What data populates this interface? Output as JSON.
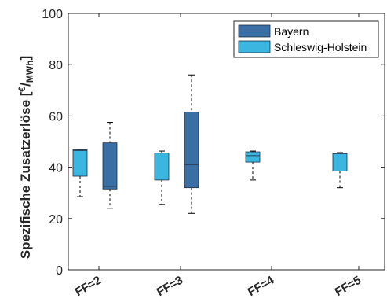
{
  "chart_data": {
    "type": "boxplot",
    "title": "",
    "ylabel": {
      "main": "Spezifische Zusatzerlöse [",
      "unit_num": "€",
      "unit_slash": "/",
      "unit_den": "MWh",
      "close": "]"
    },
    "ylim": [
      0,
      100
    ],
    "yticks": [
      0,
      20,
      40,
      60,
      80,
      100
    ],
    "categories": [
      "FF=2",
      "FF=3",
      "FF=4",
      "FF=5"
    ],
    "legend_position": "top-right",
    "grid": false,
    "series": [
      {
        "name": "Bayern",
        "color": "#3a6fa6",
        "boxes": [
          {
            "category": "FF=2",
            "min": 24,
            "q1": 31.5,
            "median": 32.5,
            "q3": 49.5,
            "max": 57.5
          },
          {
            "category": "FF=3",
            "min": 22,
            "q1": 32,
            "median": 41,
            "q3": 61.5,
            "max": 76
          }
        ]
      },
      {
        "name": "Schleswig-Holstein",
        "color": "#3ab6e0",
        "boxes": [
          {
            "category": "FF=2",
            "min": 28.5,
            "q1": 36.5,
            "median": 46.5,
            "q3": 46.8,
            "max": 46.8
          },
          {
            "category": "FF=3",
            "min": 25.5,
            "q1": 35,
            "median": 44,
            "q3": 45.5,
            "max": 46.3
          },
          {
            "category": "FF=4",
            "min": 35,
            "q1": 42,
            "median": 44.5,
            "q3": 46,
            "max": 46.3
          },
          {
            "category": "FF=5",
            "min": 32,
            "q1": 38.5,
            "median": 45.3,
            "q3": 45.5,
            "max": 45.7
          }
        ]
      }
    ]
  }
}
